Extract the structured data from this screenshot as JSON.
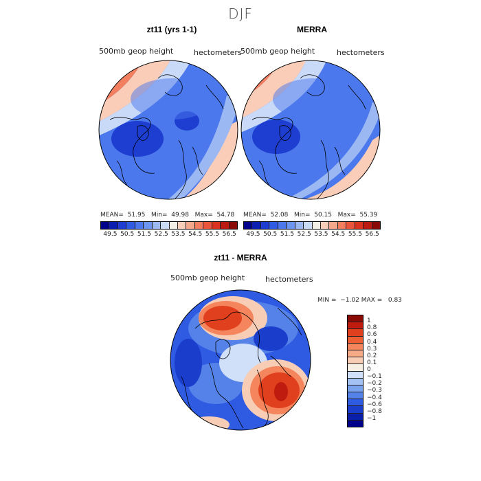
{
  "title": "DJF",
  "panels": {
    "left": {
      "title": "zt11 (yrs 1-1)",
      "field_label": "500mb geop height",
      "units": "hectometers",
      "stats": {
        "mean_label": "MEAN=",
        "mean": "51.95",
        "min_label": "Min=",
        "min": "49.98",
        "max_label": "Max=",
        "max": "54.78"
      }
    },
    "right": {
      "title": "MERRA",
      "field_label": "500mb geop height",
      "units": "hectometers",
      "stats": {
        "mean_label": "MEAN=",
        "mean": "52.08",
        "min_label": "Min=",
        "min": "50.15",
        "max_label": "Max=",
        "max": "55.39"
      }
    },
    "diff": {
      "title": "zt11 - MERRA",
      "field_label": "500mb geop height",
      "units": "hectometers",
      "stats": {
        "min_label": "MIN =",
        "min": "−1.02",
        "max_label": "MAX =",
        "max": "0.83"
      }
    }
  },
  "colorbar_top": {
    "ticks": [
      "49.5",
      "50.5",
      "51.5",
      "52.5",
      "53.5",
      "54.5",
      "55.5",
      "56.5"
    ],
    "colors": [
      "#00008b",
      "#0a1fb0",
      "#1d3ed0",
      "#2f5be3",
      "#4b78ec",
      "#6c95f0",
      "#9bb8f3",
      "#c9daf8",
      "#f3eee6",
      "#f9cdb8",
      "#f6a88a",
      "#f17f60",
      "#e8553a",
      "#d9321f",
      "#bb1a10",
      "#8a0a05"
    ]
  },
  "colorbar_diff": {
    "ticks": [
      "1",
      "0.8",
      "0.6",
      "0.4",
      "0.3",
      "0.2",
      "0.1",
      "0",
      "−0.1",
      "−0.2",
      "−0.3",
      "−0.4",
      "−0.6",
      "−0.8",
      "−1"
    ],
    "colors": [
      "#8a0a05",
      "#c01b0f",
      "#e0401e",
      "#ef5f35",
      "#f4855c",
      "#f7aa88",
      "#f8cdb6",
      "#f8efe4",
      "#cfe0f8",
      "#a5c2f4",
      "#7ba2ee",
      "#5582e8",
      "#2f5be3",
      "#1a3dcc",
      "#0a20a8",
      "#00008b"
    ]
  },
  "colors": {
    "deep_blue": "#2a55e0",
    "mid_blue": "#5a86ec",
    "light_blue": "#aac6f5",
    "neutral": "#f5f1ea",
    "light_red": "#f6b399",
    "mid_red": "#ee6f4c",
    "deep_red": "#d63a1e",
    "coast": "#000000"
  }
}
